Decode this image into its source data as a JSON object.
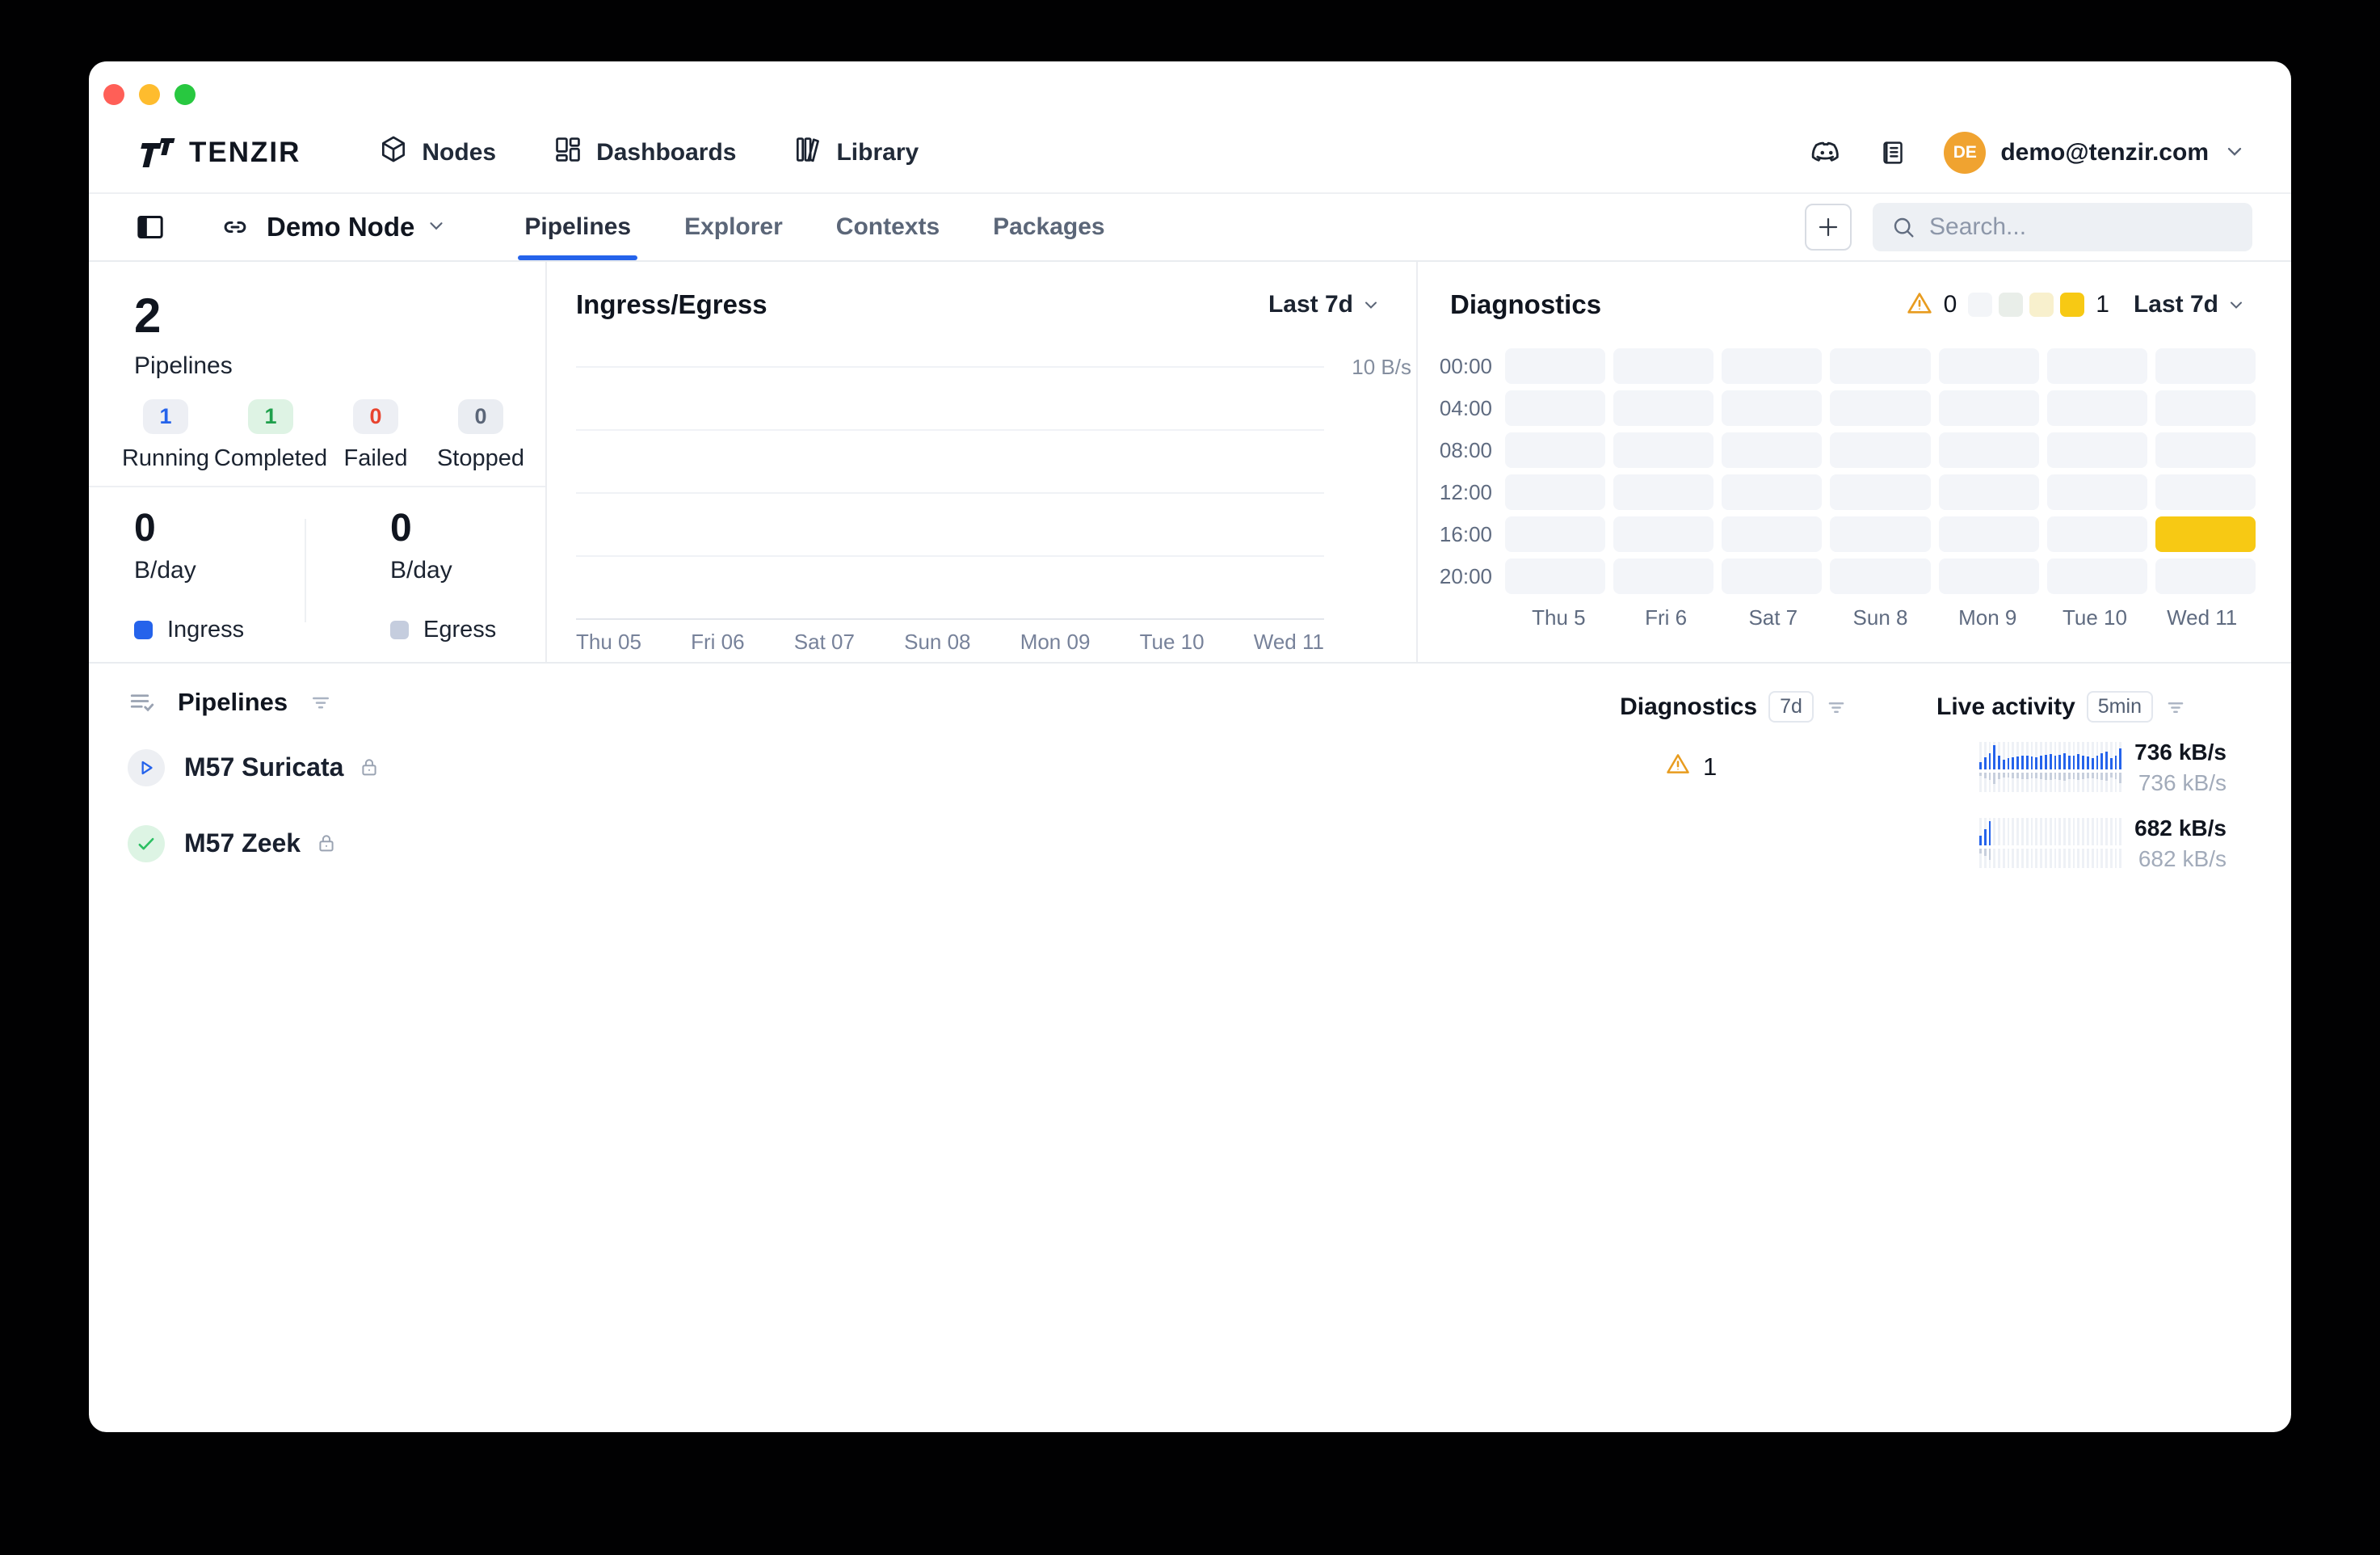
{
  "header": {
    "logo_text": "TENZIR",
    "nav_items": [
      {
        "label": "Nodes",
        "icon": "cube-icon"
      },
      {
        "label": "Dashboards",
        "icon": "dashboard-icon"
      },
      {
        "label": "Library",
        "icon": "library-icon"
      }
    ],
    "user": {
      "initials": "DE",
      "email": "demo@tenzir.com",
      "avatar_color": "#f0a330"
    }
  },
  "node_bar": {
    "node_name": "Demo Node",
    "tabs": [
      {
        "label": "Pipelines",
        "active": true
      },
      {
        "label": "Explorer",
        "active": false
      },
      {
        "label": "Contexts",
        "active": false
      },
      {
        "label": "Packages",
        "active": false
      }
    ],
    "search_placeholder": "Search..."
  },
  "summary": {
    "count": "2",
    "count_label": "Pipelines",
    "statuses": [
      {
        "value": "1",
        "label": "Running",
        "color": "#2563eb",
        "bg": "#edeff4"
      },
      {
        "value": "1",
        "label": "Completed",
        "color": "#1fa04c",
        "bg": "#def3e4"
      },
      {
        "value": "0",
        "label": "Failed",
        "color": "#e8442f",
        "bg": "#edeff4"
      },
      {
        "value": "0",
        "label": "Stopped",
        "color": "#5b6678",
        "bg": "#eaedf2"
      }
    ],
    "throughput": [
      {
        "value": "0",
        "unit": "B/day",
        "legend": "Ingress",
        "color": "#2563eb"
      },
      {
        "value": "0",
        "unit": "B/day",
        "legend": "Egress",
        "color": "#c5cdde"
      }
    ]
  },
  "chart_data": [
    {
      "type": "line",
      "title": "Ingress/Egress",
      "range_label": "Last 7d",
      "y_tick": "10 B/s",
      "x_ticks": [
        "Thu 05",
        "Fri 06",
        "Sat 07",
        "Sun 08",
        "Mon 09",
        "Tue 10",
        "Wed 11"
      ],
      "series": [],
      "gridlines": 4
    },
    {
      "type": "heatmap",
      "title": "Diagnostics",
      "range_label": "Last 7d",
      "warning_count": "0",
      "scale_max_label": "1",
      "scale_colors": [
        "#f3f5f8",
        "#e9eee9",
        "#f8f0cd",
        "#f7c914"
      ],
      "rows": [
        "00:00",
        "04:00",
        "08:00",
        "12:00",
        "16:00",
        "20:00"
      ],
      "cols": [
        "Thu 5",
        "Fri 6",
        "Sat 7",
        "Sun 8",
        "Mon 9",
        "Tue 10",
        "Wed 11"
      ],
      "highlight_cell": {
        "row_index": 4,
        "col_index": 6,
        "color": "#f7c914"
      }
    }
  ],
  "pipelines": {
    "title": "Pipelines",
    "columns": {
      "diagnostics": "Diagnostics",
      "diagnostics_badge": "7d",
      "live_activity": "Live activity",
      "live_activity_badge": "5min"
    },
    "rows": [
      {
        "name": "M57 Suricata",
        "status": "running",
        "status_icon": "play-icon",
        "warnings": "1",
        "rate_value": "736",
        "rate_unit": "kB/s",
        "rate_value_secondary": "736",
        "rate_unit_secondary": "kB/s",
        "spark": [
          0.3,
          0.5,
          0.65,
          1.0,
          0.55,
          0.4,
          0.45,
          0.5,
          0.52,
          0.55,
          0.58,
          0.52,
          0.5,
          0.55,
          0.6,
          0.62,
          0.55,
          0.6,
          0.68,
          0.55,
          0.58,
          0.62,
          0.58,
          0.52,
          0.48,
          0.55,
          0.65,
          0.72,
          0.45,
          0.55,
          0.88
        ]
      },
      {
        "name": "M57 Zeek",
        "status": "completed",
        "status_icon": "check-icon",
        "warnings": "",
        "rate_value": "682",
        "rate_unit": "kB/s",
        "rate_value_secondary": "682",
        "rate_unit_secondary": "kB/s",
        "spark": [
          0.4,
          0.65,
          1.0,
          0,
          0,
          0,
          0,
          0,
          0,
          0,
          0,
          0,
          0,
          0,
          0,
          0,
          0,
          0,
          0,
          0,
          0,
          0,
          0,
          0,
          0,
          0,
          0,
          0,
          0,
          0,
          0
        ]
      }
    ]
  }
}
